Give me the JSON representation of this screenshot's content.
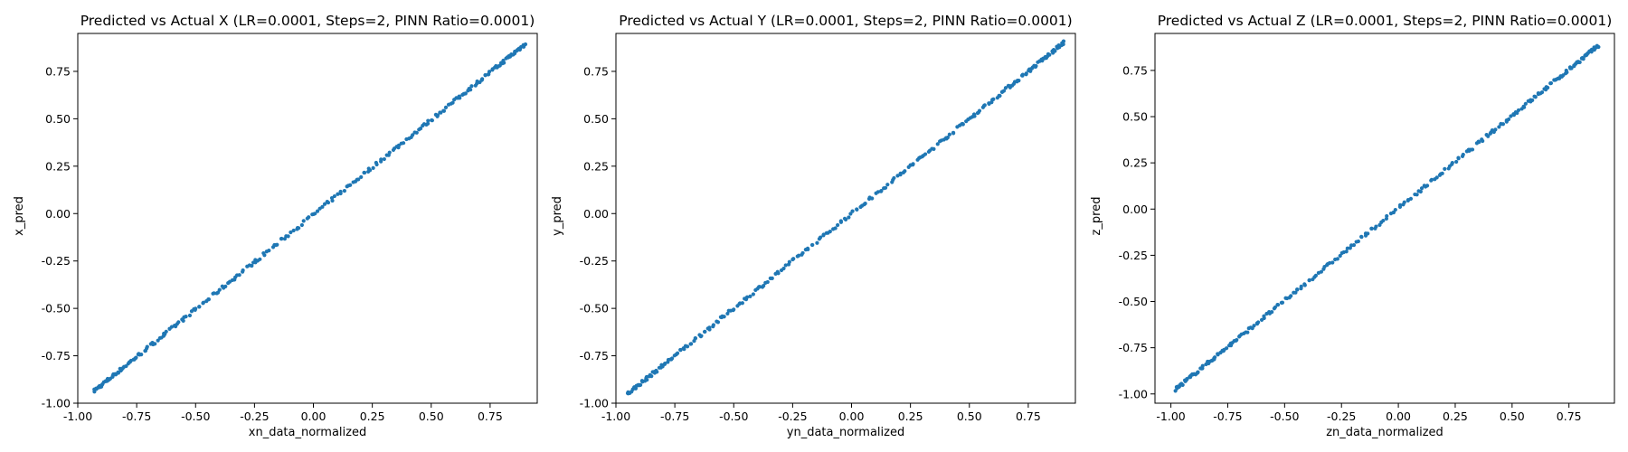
{
  "chart_data": [
    {
      "type": "scatter",
      "title": "Predicted vs Actual X (LR=0.0001, Steps=2, PINN Ratio=0.0001)",
      "xlabel": "xn_data_normalized",
      "ylabel": "x_pred",
      "xlim": [
        -1.0,
        0.95
      ],
      "ylim": [
        -1.0,
        0.95
      ],
      "xticks": [
        "-1.00",
        "-0.75",
        "-0.50",
        "-0.25",
        "0.00",
        "0.25",
        "0.50",
        "0.75"
      ],
      "yticks": [
        "-1.00",
        "-0.75",
        "-0.50",
        "-0.25",
        "0.00",
        "0.25",
        "0.50",
        "0.75"
      ],
      "range": [
        -0.93,
        0.9
      ],
      "slope": 1.0,
      "intercept": -0.005,
      "point_color": "#1f77b4",
      "grid": false
    },
    {
      "type": "scatter",
      "title": "Predicted vs Actual Y (LR=0.0001, Steps=2, PINN Ratio=0.0001)",
      "xlabel": "yn_data_normalized",
      "ylabel": "y_pred",
      "xlim": [
        -1.0,
        0.95
      ],
      "ylim": [
        -1.0,
        0.95
      ],
      "xticks": [
        "-1.00",
        "-0.75",
        "-0.50",
        "-0.25",
        "0.00",
        "0.25",
        "0.50",
        "0.75"
      ],
      "yticks": [
        "-1.00",
        "-0.75",
        "-0.50",
        "-0.25",
        "0.00",
        "0.25",
        "0.50",
        "0.75"
      ],
      "range": [
        -0.95,
        0.9
      ],
      "slope": 1.0,
      "intercept": 0.0,
      "point_color": "#1f77b4",
      "grid": false
    },
    {
      "type": "scatter",
      "title": "Predicted vs Actual Z (LR=0.0001, Steps=2, PINN Ratio=0.0001)",
      "xlabel": "zn_data_normalized",
      "ylabel": "z_pred",
      "xlim": [
        -1.07,
        0.95
      ],
      "ylim": [
        -1.05,
        0.95
      ],
      "xticks": [
        "-1.00",
        "-0.75",
        "-0.50",
        "-0.25",
        "0.00",
        "0.25",
        "0.50",
        "0.75"
      ],
      "yticks": [
        "-1.00",
        "-0.75",
        "-0.50",
        "-0.25",
        "0.00",
        "0.25",
        "0.50",
        "0.75"
      ],
      "range": [
        -0.98,
        0.88
      ],
      "slope": 1.0,
      "intercept": 0.005,
      "point_color": "#1f77b4",
      "grid": false
    }
  ]
}
